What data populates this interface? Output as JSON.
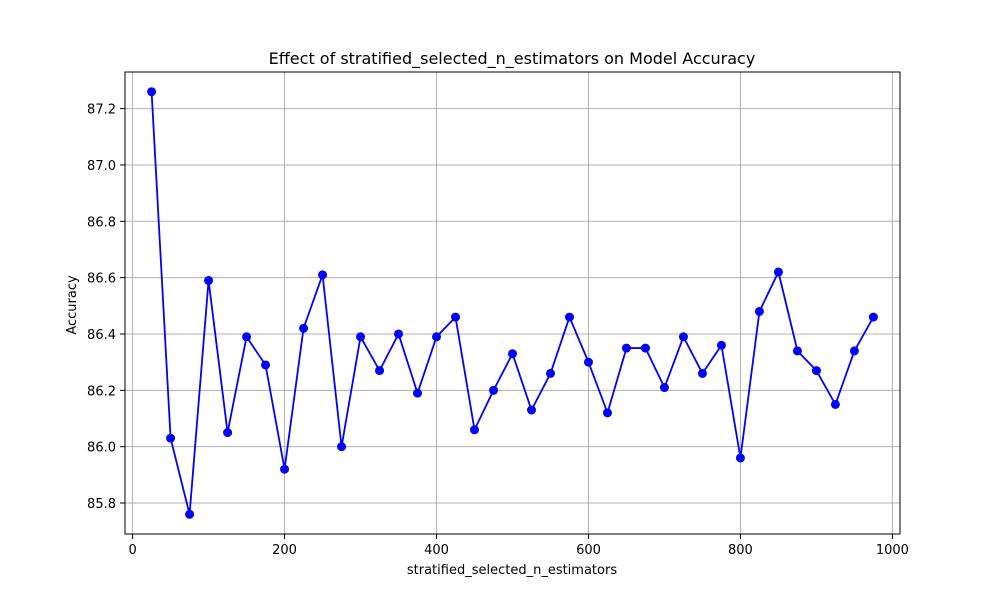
{
  "chart_data": {
    "type": "line",
    "title": "Effect of stratified_selected_n_estimators on Model Accuracy",
    "xlabel": "stratified_selected_n_estimators",
    "ylabel": "Accuracy",
    "xlim": [
      -10,
      1010
    ],
    "ylim": [
      85.69,
      87.33
    ],
    "xticks": [
      0,
      200,
      400,
      600,
      800,
      1000
    ],
    "xtick_labels": [
      "0",
      "200",
      "400",
      "600",
      "800",
      "1000"
    ],
    "yticks": [
      85.8,
      86.0,
      86.2,
      86.4,
      86.6,
      86.8,
      87.0,
      87.2
    ],
    "ytick_labels": [
      "85.8",
      "86.0",
      "86.2",
      "86.4",
      "86.6",
      "86.8",
      "87.0",
      "87.2"
    ],
    "grid": true,
    "line_color": "#0000ff",
    "marker": "circle",
    "series": [
      {
        "x": [
          25,
          50,
          75,
          100,
          125,
          150,
          175,
          200,
          225,
          250,
          275,
          300,
          325,
          350,
          375,
          400,
          425,
          450,
          475,
          500,
          525,
          550,
          575,
          600,
          625,
          650,
          675,
          700,
          725,
          750,
          775,
          800,
          825,
          850,
          875,
          900,
          925,
          950,
          975
        ],
        "values": [
          87.26,
          86.03,
          85.76,
          86.59,
          86.05,
          86.39,
          86.29,
          85.92,
          86.42,
          86.61,
          86.0,
          86.39,
          86.27,
          86.4,
          86.19,
          86.39,
          86.46,
          86.06,
          86.2,
          86.33,
          86.13,
          86.26,
          86.46,
          86.3,
          86.12,
          86.35,
          86.35,
          86.21,
          86.39,
          86.26,
          86.36,
          85.96,
          86.48,
          86.62,
          86.34,
          86.27,
          86.15,
          86.34,
          86.46
        ]
      }
    ]
  }
}
